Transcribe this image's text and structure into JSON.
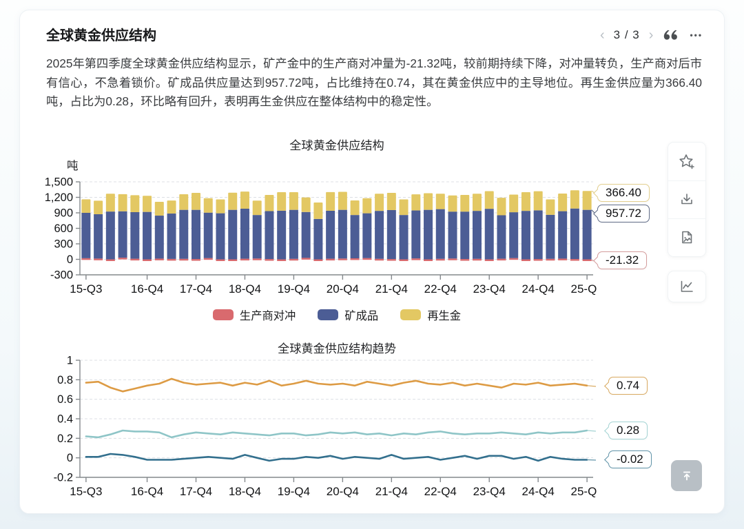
{
  "header": {
    "title": "全球黄金供应结构",
    "pagination": {
      "prev_icon": "‹",
      "display": "3 / 3",
      "next_icon": "›"
    },
    "more_icon": "•••"
  },
  "summary": "2025年第四季度全球黄金供应结构显示，矿产金中的生产商对冲量为-21.32吨，较前期持续下降，对冲量转负，生产商对后市有信心，不急着锁价。矿成品供应量达到957.72吨，占比维持在0.74，其在黄金供应中的主导地位。再生金供应量为366.40吨，占比为0.28，环比略有回升，表明再生金供应在整体结构中的稳定性。",
  "toolbar": {
    "icons": [
      "star-plus",
      "download",
      "export-image",
      "line-chart"
    ]
  },
  "back_to_top_icon": "arrow-to-top",
  "chart_data": [
    {
      "type": "bar",
      "stacked": true,
      "title": "全球黄金供应结构",
      "unit": "吨",
      "ylim": [
        -300,
        1500
      ],
      "ytick_labels": [
        "1,500",
        "1,200",
        "900",
        "600",
        "300",
        "0",
        "-300"
      ],
      "ytick_values": [
        1500,
        1200,
        900,
        600,
        300,
        0,
        -300
      ],
      "grid": true,
      "legend_position": "bottom",
      "categories": [
        "15-Q3",
        "15-Q4",
        "16-Q1",
        "16-Q2",
        "16-Q3",
        "16-Q4",
        "17-Q1",
        "17-Q2",
        "17-Q3",
        "17-Q4",
        "18-Q1",
        "18-Q2",
        "18-Q3",
        "18-Q4",
        "19-Q1",
        "19-Q2",
        "19-Q3",
        "19-Q4",
        "20-Q1",
        "20-Q2",
        "20-Q3",
        "20-Q4",
        "21-Q1",
        "21-Q2",
        "21-Q3",
        "21-Q4",
        "22-Q1",
        "22-Q2",
        "22-Q3",
        "22-Q4",
        "23-Q1",
        "23-Q2",
        "23-Q3",
        "23-Q4",
        "24-Q1",
        "24-Q2",
        "24-Q3",
        "24-Q4",
        "25-Q1",
        "25-Q2",
        "25-Q3",
        "25-Q4"
      ],
      "xtick_labels": [
        "15-Q3",
        "16-Q4",
        "17-Q4",
        "18-Q4",
        "19-Q4",
        "20-Q4",
        "21-Q4",
        "22-Q4",
        "23-Q4",
        "24-Q4",
        "25-Q4"
      ],
      "series": [
        {
          "name": "生产商对冲",
          "color": "#d96a6e",
          "values": [
            22,
            15,
            -28,
            32,
            12,
            -18,
            14,
            8,
            10,
            6,
            24,
            -22,
            -32,
            12,
            16,
            6,
            -18,
            10,
            28,
            -20,
            12,
            16,
            20,
            24,
            10,
            6,
            -14,
            18,
            -24,
            10,
            16,
            6,
            10,
            -18,
            12,
            24,
            -14,
            6,
            10,
            14,
            6,
            -21.32
          ]
        },
        {
          "name": "矿成品",
          "color": "#4c5d95",
          "values": [
            878,
            858,
            925,
            898,
            902,
            918,
            832,
            878,
            948,
            952,
            880,
            892,
            958,
            968,
            842,
            928,
            942,
            948,
            888,
            782,
            928,
            942,
            838,
            868,
            928,
            948,
            858,
            928,
            958,
            962,
            908,
            918,
            928,
            978,
            842,
            888,
            938,
            942,
            852,
            918,
            978,
            957.72
          ]
        },
        {
          "name": "再生金",
          "color": "#e3c863",
          "values": [
            262,
            262,
            345,
            332,
            328,
            312,
            268,
            252,
            302,
            328,
            280,
            268,
            332,
            332,
            278,
            312,
            358,
            342,
            282,
            318,
            362,
            348,
            282,
            292,
            332,
            332,
            302,
            312,
            322,
            298,
            312,
            322,
            332,
            342,
            338,
            342,
            362,
            370,
            298,
            342,
            352,
            366.4
          ]
        }
      ],
      "callouts": [
        {
          "label": "366.40",
          "color": "#e3cf8e",
          "series": "再生金"
        },
        {
          "label": "957.72",
          "color": "#5f6b86",
          "series": "矿成品"
        },
        {
          "label": "-21.32",
          "color": "#d49c9c",
          "series": "生产商对冲"
        }
      ]
    },
    {
      "type": "line",
      "title": "全球黄金供应结构趋势",
      "ylim": [
        -0.2,
        1
      ],
      "ytick_labels": [
        "1",
        "0.8",
        "0.6",
        "0.4",
        "0.2",
        "0",
        "-0.2"
      ],
      "ytick_values": [
        1,
        0.8,
        0.6,
        0.4,
        0.2,
        0,
        -0.2
      ],
      "grid": true,
      "categories": [
        "15-Q3",
        "15-Q4",
        "16-Q1",
        "16-Q2",
        "16-Q3",
        "16-Q4",
        "17-Q1",
        "17-Q2",
        "17-Q3",
        "17-Q4",
        "18-Q1",
        "18-Q2",
        "18-Q3",
        "18-Q4",
        "19-Q1",
        "19-Q2",
        "19-Q3",
        "19-Q4",
        "20-Q1",
        "20-Q2",
        "20-Q3",
        "20-Q4",
        "21-Q1",
        "21-Q2",
        "21-Q3",
        "21-Q4",
        "22-Q1",
        "22-Q2",
        "22-Q3",
        "22-Q4",
        "23-Q1",
        "23-Q2",
        "23-Q3",
        "23-Q4",
        "24-Q1",
        "24-Q2",
        "24-Q3",
        "24-Q4",
        "25-Q1",
        "25-Q2",
        "25-Q3",
        "25-Q4"
      ],
      "xtick_labels": [
        "15-Q3",
        "16-Q4",
        "17-Q4",
        "18-Q4",
        "19-Q4",
        "20-Q4",
        "21-Q4",
        "22-Q4",
        "23-Q4",
        "24-Q4",
        "25-Q4"
      ],
      "series": [
        {
          "color": "#dd9b44",
          "values": [
            0.77,
            0.78,
            0.72,
            0.68,
            0.71,
            0.74,
            0.76,
            0.81,
            0.77,
            0.75,
            0.76,
            0.77,
            0.74,
            0.77,
            0.75,
            0.79,
            0.74,
            0.76,
            0.79,
            0.76,
            0.75,
            0.76,
            0.74,
            0.78,
            0.76,
            0.74,
            0.77,
            0.79,
            0.76,
            0.75,
            0.77,
            0.74,
            0.76,
            0.74,
            0.72,
            0.76,
            0.75,
            0.77,
            0.74,
            0.75,
            0.76,
            0.74
          ]
        },
        {
          "color": "#8ec5c7",
          "values": [
            0.22,
            0.21,
            0.24,
            0.28,
            0.27,
            0.27,
            0.26,
            0.21,
            0.24,
            0.26,
            0.25,
            0.24,
            0.26,
            0.25,
            0.24,
            0.23,
            0.25,
            0.25,
            0.23,
            0.24,
            0.26,
            0.25,
            0.26,
            0.24,
            0.25,
            0.23,
            0.25,
            0.24,
            0.26,
            0.27,
            0.25,
            0.24,
            0.25,
            0.25,
            0.26,
            0.25,
            0.24,
            0.26,
            0.25,
            0.26,
            0.26,
            0.28
          ]
        },
        {
          "color": "#326f8d",
          "values": [
            0.01,
            0.01,
            0.04,
            0.03,
            0.01,
            -0.02,
            -0.02,
            -0.02,
            -0.01,
            0,
            0.01,
            0,
            -0.01,
            0.03,
            0,
            -0.03,
            -0.01,
            -0.01,
            0.01,
            0,
            0.02,
            -0.01,
            0.01,
            0,
            -0.01,
            0.03,
            -0.01,
            0,
            0.01,
            -0.02,
            0,
            0.02,
            -0.01,
            0.02,
            0.02,
            -0.01,
            0.01,
            -0.03,
            0.01,
            -0.01,
            -0.02,
            -0.02
          ]
        }
      ],
      "callouts": [
        {
          "label": "0.74",
          "color": "#d9a95f"
        },
        {
          "label": "0.28",
          "color": "#a3d3d3"
        },
        {
          "label": "-0.02",
          "color": "#5f93a8"
        }
      ]
    }
  ]
}
